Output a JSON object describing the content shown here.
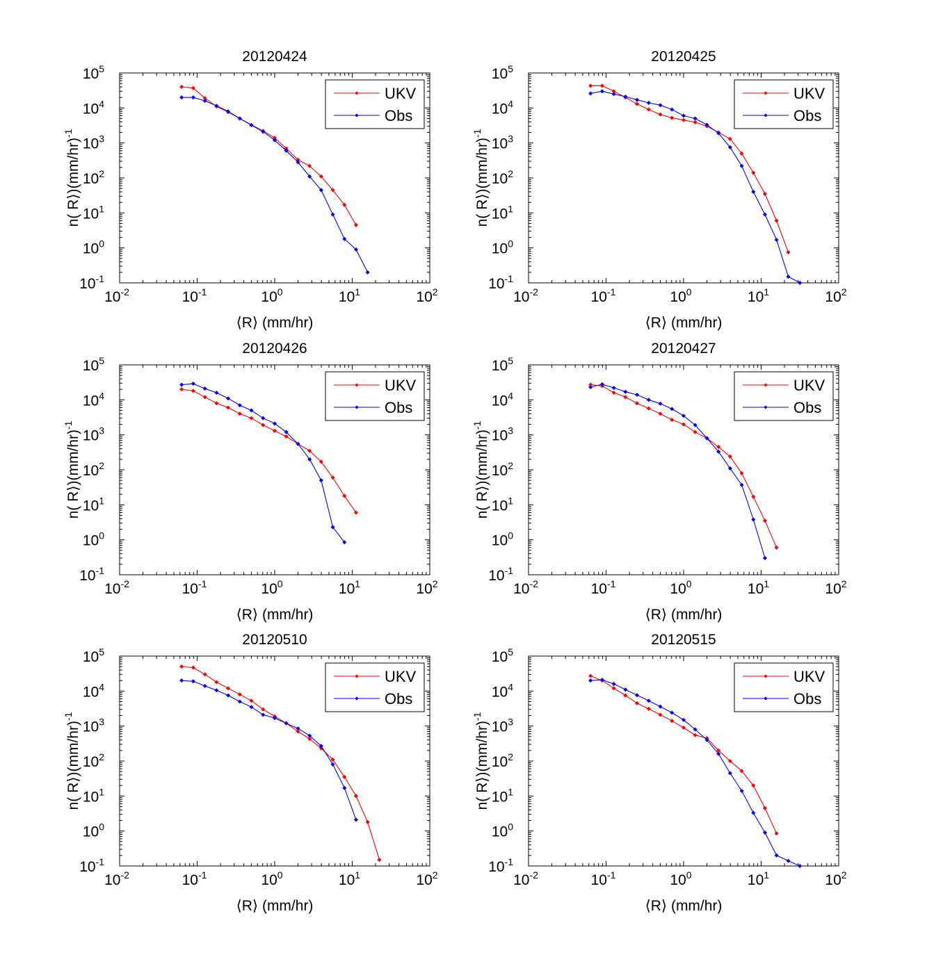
{
  "colors": {
    "ukv": "#ff0000",
    "obs": "#0000ff",
    "axis": "#000000",
    "background": "#ffffff"
  },
  "chart_data": [
    {
      "type": "line",
      "title": "20120424",
      "xlabel": "⟨R⟩ (mm/hr)",
      "ylabel": "n( R⟩)(mm/hr)",
      "ylabel_exp": "-1",
      "xscale": "log",
      "yscale": "log",
      "xlim": [
        0.01,
        100
      ],
      "ylim": [
        0.1,
        100000
      ],
      "legend_position": "top-right",
      "grid": false,
      "series": [
        {
          "name": "UKV",
          "color": "#ff0000",
          "x": [
            0.0631,
            0.0891,
            0.126,
            0.178,
            0.251,
            0.355,
            0.501,
            0.708,
            1.0,
            1.41,
            2.0,
            2.82,
            3.98,
            5.62,
            7.94,
            11.2
          ],
          "y": [
            40000,
            37000,
            19000,
            11000,
            7600,
            5000,
            3300,
            2200,
            1400,
            700,
            330,
            220,
            110,
            45,
            17,
            4.5
          ]
        },
        {
          "name": "Obs",
          "color": "#0000ff",
          "x": [
            0.0631,
            0.0891,
            0.126,
            0.178,
            0.251,
            0.355,
            0.501,
            0.708,
            1.0,
            1.41,
            2.0,
            2.82,
            3.98,
            5.62,
            7.94,
            11.2,
            15.8
          ],
          "y": [
            20000,
            20000,
            16000,
            11500,
            8000,
            5000,
            3200,
            2100,
            1200,
            600,
            280,
            110,
            45,
            9,
            1.8,
            0.9,
            0.2
          ]
        }
      ]
    },
    {
      "type": "line",
      "title": "20120425",
      "xlabel": "⟨R⟩ (mm/hr)",
      "ylabel": "n( R⟩)(mm/hr)",
      "ylabel_exp": "-1",
      "xscale": "log",
      "yscale": "log",
      "xlim": [
        0.01,
        100
      ],
      "ylim": [
        0.1,
        100000
      ],
      "legend_position": "top-right",
      "grid": false,
      "series": [
        {
          "name": "UKV",
          "color": "#ff0000",
          "x": [
            0.0631,
            0.0891,
            0.126,
            0.178,
            0.251,
            0.355,
            0.501,
            0.708,
            1.0,
            1.41,
            2.0,
            2.82,
            3.98,
            5.62,
            7.94,
            11.2,
            15.8,
            22.4
          ],
          "y": [
            43000,
            43000,
            30000,
            20000,
            13000,
            9000,
            6500,
            5200,
            4500,
            3900,
            3000,
            2000,
            1300,
            500,
            140,
            35,
            6,
            0.75
          ]
        },
        {
          "name": "Obs",
          "color": "#0000ff",
          "x": [
            0.0631,
            0.0891,
            0.126,
            0.178,
            0.251,
            0.355,
            0.501,
            0.708,
            1.0,
            1.41,
            2.0,
            2.82,
            3.98,
            5.62,
            7.94,
            11.2,
            15.8,
            22.4,
            31.6
          ],
          "y": [
            26000,
            30000,
            25000,
            21000,
            17000,
            14000,
            12000,
            9000,
            6000,
            5000,
            3300,
            1900,
            750,
            220,
            40,
            9,
            1.7,
            0.15,
            0.1
          ]
        }
      ]
    },
    {
      "type": "line",
      "title": "20120426",
      "xlabel": "⟨R⟩ (mm/hr)",
      "ylabel": "n( R⟩)(mm/hr)",
      "ylabel_exp": "-1",
      "xscale": "log",
      "yscale": "log",
      "xlim": [
        0.01,
        100
      ],
      "ylim": [
        0.1,
        100000
      ],
      "legend_position": "top-right",
      "grid": false,
      "series": [
        {
          "name": "UKV",
          "color": "#ff0000",
          "x": [
            0.0631,
            0.0891,
            0.126,
            0.178,
            0.251,
            0.355,
            0.501,
            0.708,
            1.0,
            1.41,
            2.0,
            2.82,
            3.98,
            5.62,
            7.94,
            11.2
          ],
          "y": [
            20000,
            18000,
            12000,
            8000,
            6000,
            4000,
            3000,
            1900,
            1300,
            900,
            550,
            350,
            170,
            60,
            18,
            6
          ]
        },
        {
          "name": "Obs",
          "color": "#0000ff",
          "x": [
            0.0631,
            0.0891,
            0.126,
            0.178,
            0.251,
            0.355,
            0.501,
            0.708,
            1.0,
            1.41,
            2.0,
            2.82,
            3.98,
            5.62,
            7.94
          ],
          "y": [
            27000,
            29000,
            21000,
            16000,
            11000,
            7000,
            5000,
            3000,
            2100,
            1200,
            550,
            200,
            50,
            2.3,
            0.85
          ]
        }
      ]
    },
    {
      "type": "line",
      "title": "20120427",
      "xlabel": "⟨R⟩ (mm/hr)",
      "ylabel": "n( R⟩)(mm/hr)",
      "ylabel_exp": "-1",
      "xscale": "log",
      "yscale": "log",
      "xlim": [
        0.01,
        100
      ],
      "ylim": [
        0.1,
        100000
      ],
      "legend_position": "top-right",
      "grid": false,
      "series": [
        {
          "name": "UKV",
          "color": "#ff0000",
          "x": [
            0.0631,
            0.0891,
            0.126,
            0.178,
            0.251,
            0.355,
            0.501,
            0.708,
            1.0,
            1.41,
            2.0,
            2.82,
            3.98,
            5.62,
            7.94,
            11.2,
            15.8
          ],
          "y": [
            27000,
            25000,
            16000,
            12000,
            8000,
            5700,
            4000,
            2700,
            2000,
            1200,
            800,
            450,
            240,
            80,
            17,
            3.5,
            0.6
          ]
        },
        {
          "name": "Obs",
          "color": "#0000ff",
          "x": [
            0.0631,
            0.0891,
            0.126,
            0.178,
            0.251,
            0.355,
            0.501,
            0.708,
            1.0,
            1.41,
            2.0,
            2.82,
            3.98,
            5.62,
            7.94,
            11.2
          ],
          "y": [
            23000,
            28000,
            22000,
            17000,
            14000,
            10000,
            7800,
            5500,
            3500,
            1900,
            800,
            330,
            110,
            37,
            3.8,
            0.3
          ]
        }
      ]
    },
    {
      "type": "line",
      "title": "20120510",
      "xlabel": "⟨R⟩ (mm/hr)",
      "ylabel": "n( R⟩)(mm/hr)",
      "ylabel_exp": "-1",
      "xscale": "log",
      "yscale": "log",
      "xlim": [
        0.01,
        100
      ],
      "ylim": [
        0.1,
        100000
      ],
      "legend_position": "top-right",
      "grid": false,
      "series": [
        {
          "name": "UKV",
          "color": "#ff0000",
          "x": [
            0.0631,
            0.0891,
            0.126,
            0.178,
            0.251,
            0.355,
            0.501,
            0.708,
            1.0,
            1.41,
            2.0,
            2.82,
            3.98,
            5.62,
            7.94,
            11.2,
            15.8,
            22.4
          ],
          "y": [
            50000,
            47000,
            30000,
            18000,
            12000,
            8000,
            5300,
            3000,
            1900,
            1200,
            700,
            430,
            230,
            110,
            35,
            10,
            1.8,
            0.15
          ]
        },
        {
          "name": "Obs",
          "color": "#0000ff",
          "x": [
            0.0631,
            0.0891,
            0.126,
            0.178,
            0.251,
            0.355,
            0.501,
            0.708,
            1.0,
            1.41,
            2.0,
            2.82,
            3.98,
            5.62,
            7.94,
            11.2
          ],
          "y": [
            20000,
            19000,
            14000,
            10500,
            7500,
            5000,
            3500,
            2100,
            1700,
            1200,
            850,
            530,
            270,
            80,
            17,
            2.1
          ]
        }
      ]
    },
    {
      "type": "line",
      "title": "20120515",
      "xlabel": "⟨R⟩ (mm/hr)",
      "ylabel": "n( R⟩)(mm/hr)",
      "ylabel_exp": "-1",
      "xscale": "log",
      "yscale": "log",
      "xlim": [
        0.01,
        100
      ],
      "ylim": [
        0.1,
        100000
      ],
      "legend_position": "top-right",
      "grid": false,
      "series": [
        {
          "name": "UKV",
          "color": "#ff0000",
          "x": [
            0.0631,
            0.0891,
            0.126,
            0.178,
            0.251,
            0.355,
            0.501,
            0.708,
            1.0,
            1.41,
            2.0,
            2.82,
            3.98,
            5.62,
            7.94,
            11.2,
            15.8
          ],
          "y": [
            27000,
            20000,
            12000,
            7500,
            4500,
            3100,
            2100,
            1400,
            900,
            550,
            450,
            200,
            100,
            52,
            20,
            4.5,
            0.85
          ]
        },
        {
          "name": "Obs",
          "color": "#0000ff",
          "x": [
            0.0631,
            0.0891,
            0.126,
            0.178,
            0.251,
            0.355,
            0.501,
            0.708,
            1.0,
            1.41,
            2.0,
            2.82,
            3.98,
            5.62,
            7.94,
            11.2,
            15.8,
            22.4,
            31.6
          ],
          "y": [
            20000,
            21000,
            16000,
            11000,
            7600,
            5300,
            3600,
            2400,
            1500,
            800,
            400,
            160,
            45,
            14,
            3.3,
            0.9,
            0.2,
            0.14,
            0.1
          ]
        }
      ]
    }
  ]
}
